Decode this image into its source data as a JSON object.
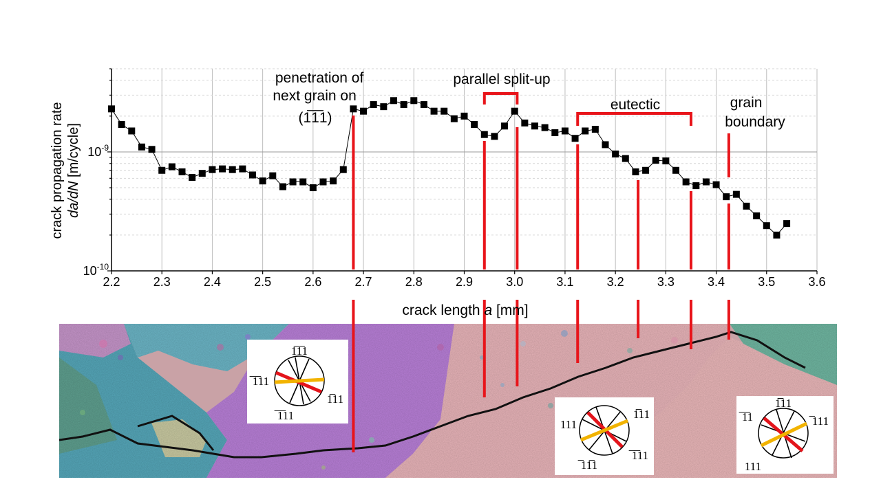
{
  "chart_data": {
    "type": "scatter",
    "title": "",
    "xlabel_prefix": "crack length ",
    "xlabel_symbol": "a",
    "xlabel_unit": " [mm]",
    "ylabel_line1": "crack propagation rate",
    "ylabel_symbol": "da/dN",
    "ylabel_unit": " [m/cycle]",
    "xlim": [
      2.2,
      3.6
    ],
    "ylim": [
      1e-10,
      5e-09
    ],
    "yscale": "log",
    "grid": true,
    "x_ticks": [
      "2.2",
      "2.3",
      "2.4",
      "2.5",
      "2.6",
      "2.7",
      "2.8",
      "2.9",
      "3.0",
      "3.1",
      "3.2",
      "3.3",
      "3.4",
      "3.5",
      "3.6"
    ],
    "y_tick_base": "10",
    "y_ticks": [
      {
        "exp": "-10",
        "value": 1e-10
      },
      {
        "exp": "-9",
        "value": 1e-09
      }
    ],
    "marker": "square",
    "connected": true,
    "color": "#000000",
    "x": [
      2.2,
      2.22,
      2.24,
      2.26,
      2.28,
      2.3,
      2.32,
      2.34,
      2.36,
      2.38,
      2.4,
      2.42,
      2.44,
      2.46,
      2.48,
      2.5,
      2.52,
      2.54,
      2.56,
      2.58,
      2.6,
      2.62,
      2.64,
      2.66,
      2.68,
      2.7,
      2.72,
      2.74,
      2.76,
      2.78,
      2.8,
      2.82,
      2.84,
      2.86,
      2.88,
      2.9,
      2.92,
      2.94,
      2.96,
      2.98,
      3.0,
      3.02,
      3.04,
      3.06,
      3.08,
      3.1,
      3.12,
      3.14,
      3.16,
      3.18,
      3.2,
      3.22,
      3.24,
      3.26,
      3.28,
      3.3,
      3.32,
      3.34,
      3.36,
      3.38,
      3.4,
      3.42,
      3.44,
      3.46,
      3.48,
      3.5,
      3.52,
      3.54
    ],
    "y": [
      2.3e-09,
      1.7e-09,
      1.5e-09,
      1.1e-09,
      1.05e-09,
      7e-10,
      7.5e-10,
      6.8e-10,
      6.1e-10,
      6.6e-10,
      7.1e-10,
      7.2e-10,
      7.1e-10,
      7.2e-10,
      6.4e-10,
      5.7e-10,
      6.3e-10,
      5.1e-10,
      5.6e-10,
      5.6e-10,
      5e-10,
      5.6e-10,
      5.7e-10,
      7.1e-10,
      2.3e-09,
      2.2e-09,
      2.5e-09,
      2.4e-09,
      2.7e-09,
      2.5e-09,
      2.7e-09,
      2.5e-09,
      2.2e-09,
      2.2e-09,
      1.9e-09,
      2e-09,
      1.7e-09,
      1.4e-09,
      1.35e-09,
      1.65e-09,
      2.2e-09,
      1.75e-09,
      1.65e-09,
      1.6e-09,
      1.45e-09,
      1.5e-09,
      1.3e-09,
      1.5e-09,
      1.55e-09,
      1.15e-09,
      9.6e-10,
      8.8e-10,
      6.8e-10,
      7e-10,
      8.5e-10,
      8.4e-10,
      7e-10,
      5.6e-10,
      5.2e-10,
      5.6e-10,
      5.3e-10,
      4.2e-10,
      4.4e-10,
      3.5e-10,
      2.9e-10,
      2.4e-10,
      2e-10,
      2.5e-10
    ],
    "annotations": [
      {
        "id": "penetration",
        "lines": [
          "penetration of",
          "next grain on",
          "(1̅1̅1)"
        ]
      },
      {
        "id": "parallel",
        "text": "parallel split-up"
      },
      {
        "id": "eutectic",
        "text": "eutectic"
      },
      {
        "id": "grain",
        "lines": [
          "grain",
          "boundary"
        ]
      }
    ],
    "marker_color": "#e8141a",
    "stereograms": [
      {
        "id": "stereo1",
        "labels": [
          "1̅1̅1",
          "̅1̅11",
          "1̅11",
          "̅1̅11"
        ]
      },
      {
        "id": "stereo2",
        "labels": [
          "111",
          "1̅11",
          "̅1̅11",
          "̅11̅1"
        ]
      },
      {
        "id": "stereo3",
        "labels": [
          "1̅̅11",
          "̅1̅1",
          "̅111",
          "111"
        ]
      }
    ],
    "trace_colors": {
      "red": "#e3141b",
      "yellow": "#f2b300"
    }
  }
}
